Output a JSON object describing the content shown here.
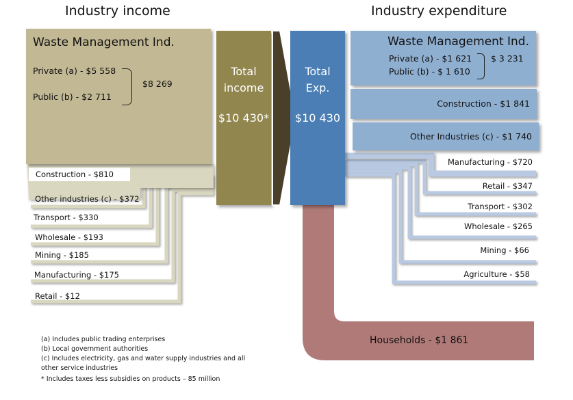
{
  "titles": {
    "income": "Industry income",
    "expenditure": "Industry expenditure"
  },
  "income": {
    "waste": {
      "title": "Waste Management Ind.",
      "private": "Private (a) - $5 558",
      "public": "Public (b) - $2 711",
      "total": "$8 269"
    },
    "total": {
      "line1": "Total",
      "line2": "income",
      "value": "$10 430*"
    },
    "items": [
      {
        "label": "Construction -  $810"
      },
      {
        "label": "Other industries (c) -  $372"
      },
      {
        "label": "Transport -  $330"
      },
      {
        "label": "Wholesale -  $193"
      },
      {
        "label": "Mining -  $185"
      },
      {
        "label": "Manufacturing - $175"
      },
      {
        "label": "Retail -  $12"
      }
    ]
  },
  "expenditure": {
    "total": {
      "line1": "Total",
      "line2": "Exp.",
      "value": "$10 430"
    },
    "waste": {
      "title": "Waste Management Ind.",
      "private": "Private (a) - $1 621",
      "public": "Public (b) - $ 1 610",
      "total": "$ 3 231"
    },
    "construction": "Construction - $1 841",
    "other": "Other Industries (c) - $1 740",
    "items": [
      {
        "label": "Manufacturing - $720"
      },
      {
        "label": "Retail - $347"
      },
      {
        "label": "Transport  - $302"
      },
      {
        "label": "Wholesale - $265"
      },
      {
        "label": "Mining - $66"
      },
      {
        "label": "Agriculture - $58"
      }
    ],
    "households": "Households - $1 861"
  },
  "footnotes": [
    "(a) Includes public trading enterprises",
    "(b) Local government authorities",
    "(c) Includes electricity, gas and water supply industries and all",
    "other service industries",
    "*  Includes taxes less subsidies on products – 85 million"
  ],
  "colors": {
    "income_waste": "#c2b994",
    "income_total": "#92864f",
    "arrow": "#4a3f28",
    "exp_total": "#4a7eb5",
    "exp_boxes": "#8fafd1",
    "exp_lines": "#b8c9e1",
    "income_lines": "#d9d7c0",
    "households": "#b07a78"
  }
}
